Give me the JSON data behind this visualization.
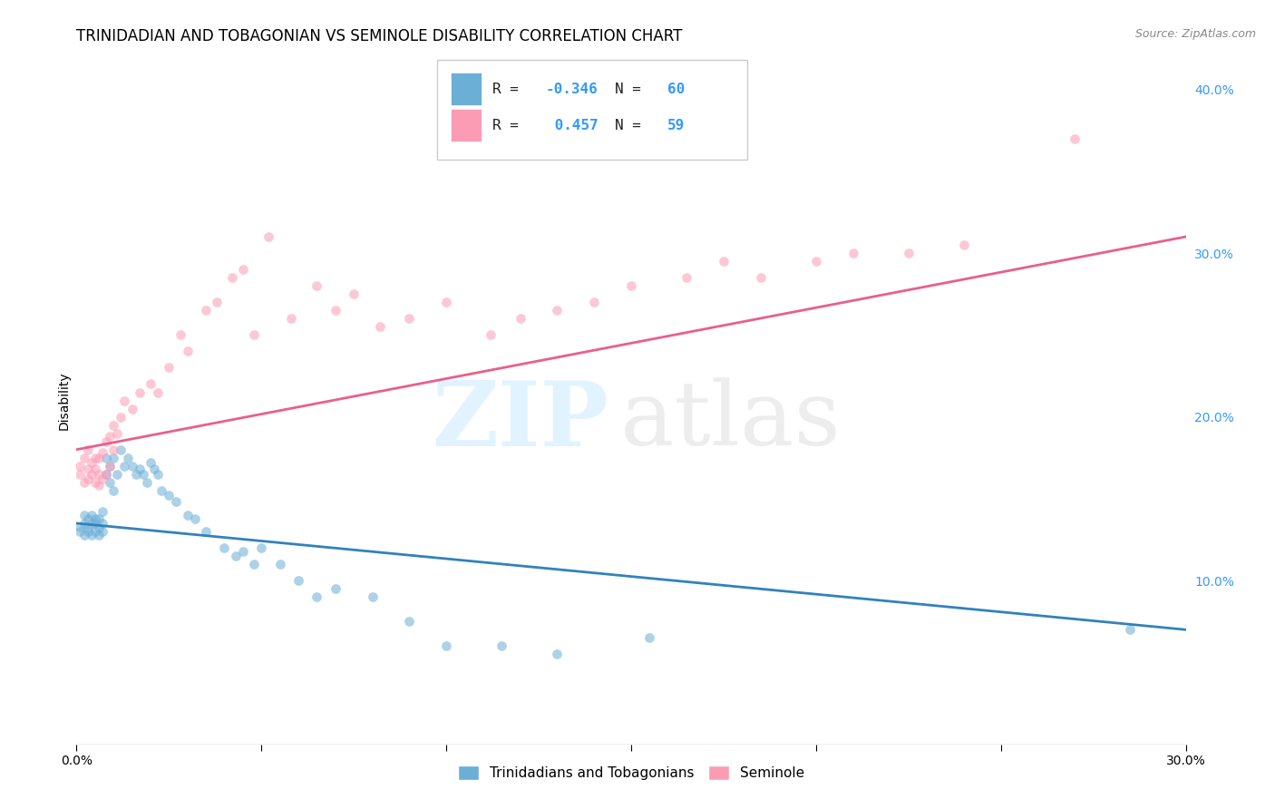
{
  "title": "TRINIDADIAN AND TOBAGONIAN VS SEMINOLE DISABILITY CORRELATION CHART",
  "source": "Source: ZipAtlas.com",
  "ylabel": "Disability",
  "xlim": [
    0.0,
    0.3
  ],
  "ylim": [
    0.0,
    0.42
  ],
  "x_ticks": [
    0.0,
    0.05,
    0.1,
    0.15,
    0.2,
    0.25,
    0.3
  ],
  "x_tick_labels": [
    "0.0%",
    "",
    "",
    "",
    "",
    "",
    "30.0%"
  ],
  "y_ticks_right": [
    0.1,
    0.2,
    0.3,
    0.4
  ],
  "y_tick_labels_right": [
    "10.0%",
    "20.0%",
    "30.0%",
    "40.0%"
  ],
  "legend_R_blue": "-0.346",
  "legend_N_blue": "60",
  "legend_R_pink": "0.457",
  "legend_N_pink": "59",
  "blue_color": "#6baed6",
  "pink_color": "#fc9cb4",
  "blue_line_color": "#3182bd",
  "pink_line_color": "#e8608a",
  "blue_scatter_x": [
    0.001,
    0.001,
    0.002,
    0.002,
    0.002,
    0.003,
    0.003,
    0.003,
    0.004,
    0.004,
    0.004,
    0.005,
    0.005,
    0.005,
    0.006,
    0.006,
    0.006,
    0.007,
    0.007,
    0.007,
    0.008,
    0.008,
    0.009,
    0.009,
    0.01,
    0.01,
    0.011,
    0.012,
    0.013,
    0.014,
    0.015,
    0.016,
    0.017,
    0.018,
    0.019,
    0.02,
    0.021,
    0.022,
    0.023,
    0.025,
    0.027,
    0.03,
    0.032,
    0.035,
    0.04,
    0.043,
    0.045,
    0.048,
    0.05,
    0.055,
    0.06,
    0.065,
    0.07,
    0.08,
    0.09,
    0.1,
    0.115,
    0.13,
    0.155,
    0.285
  ],
  "blue_scatter_y": [
    0.13,
    0.133,
    0.128,
    0.135,
    0.14,
    0.13,
    0.132,
    0.138,
    0.128,
    0.135,
    0.14,
    0.13,
    0.135,
    0.138,
    0.128,
    0.132,
    0.138,
    0.13,
    0.135,
    0.142,
    0.165,
    0.175,
    0.16,
    0.17,
    0.155,
    0.175,
    0.165,
    0.18,
    0.17,
    0.175,
    0.17,
    0.165,
    0.168,
    0.165,
    0.16,
    0.172,
    0.168,
    0.165,
    0.155,
    0.152,
    0.148,
    0.14,
    0.138,
    0.13,
    0.12,
    0.115,
    0.118,
    0.11,
    0.12,
    0.11,
    0.1,
    0.09,
    0.095,
    0.09,
    0.075,
    0.06,
    0.06,
    0.055,
    0.065,
    0.07
  ],
  "pink_scatter_x": [
    0.001,
    0.001,
    0.002,
    0.002,
    0.003,
    0.003,
    0.003,
    0.004,
    0.004,
    0.005,
    0.005,
    0.005,
    0.006,
    0.006,
    0.006,
    0.007,
    0.007,
    0.008,
    0.008,
    0.009,
    0.009,
    0.01,
    0.01,
    0.011,
    0.012,
    0.013,
    0.015,
    0.017,
    0.02,
    0.022,
    0.025,
    0.028,
    0.03,
    0.035,
    0.038,
    0.042,
    0.045,
    0.048,
    0.052,
    0.058,
    0.065,
    0.07,
    0.075,
    0.082,
    0.09,
    0.1,
    0.112,
    0.12,
    0.13,
    0.14,
    0.15,
    0.165,
    0.175,
    0.185,
    0.2,
    0.21,
    0.225,
    0.24,
    0.27
  ],
  "pink_scatter_y": [
    0.165,
    0.17,
    0.16,
    0.175,
    0.162,
    0.168,
    0.18,
    0.165,
    0.172,
    0.16,
    0.168,
    0.175,
    0.158,
    0.165,
    0.175,
    0.162,
    0.178,
    0.165,
    0.185,
    0.17,
    0.188,
    0.18,
    0.195,
    0.19,
    0.2,
    0.21,
    0.205,
    0.215,
    0.22,
    0.215,
    0.23,
    0.25,
    0.24,
    0.265,
    0.27,
    0.285,
    0.29,
    0.25,
    0.31,
    0.26,
    0.28,
    0.265,
    0.275,
    0.255,
    0.26,
    0.27,
    0.25,
    0.26,
    0.265,
    0.27,
    0.28,
    0.285,
    0.295,
    0.285,
    0.295,
    0.3,
    0.3,
    0.305,
    0.37
  ],
  "blue_trend_x": [
    0.0,
    0.3
  ],
  "blue_trend_y": [
    0.135,
    0.07
  ],
  "pink_trend_x": [
    0.0,
    0.3
  ],
  "pink_trend_y": [
    0.18,
    0.31
  ],
  "background_color": "#ffffff",
  "grid_color": "#cccccc",
  "title_fontsize": 12,
  "axis_label_fontsize": 10,
  "tick_fontsize": 10,
  "marker_size": 60
}
